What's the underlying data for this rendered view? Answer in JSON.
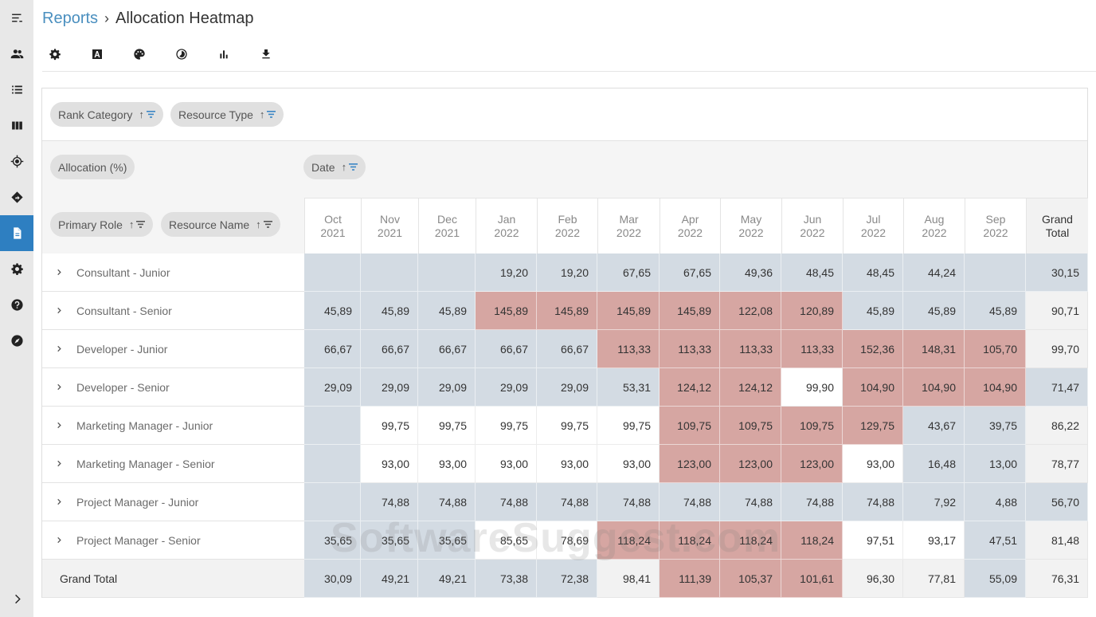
{
  "sidebar": {
    "items": [
      {
        "name": "menu-toggle",
        "icon": "menu-icon",
        "active": false
      },
      {
        "name": "people",
        "icon": "people-icon",
        "active": false
      },
      {
        "name": "list",
        "icon": "list-icon",
        "active": false
      },
      {
        "name": "board",
        "icon": "columns-icon",
        "active": false
      },
      {
        "name": "target",
        "icon": "crosshair-icon",
        "active": false
      },
      {
        "name": "directions",
        "icon": "directions-icon",
        "active": false
      },
      {
        "name": "reports",
        "icon": "document-icon",
        "active": true
      },
      {
        "name": "settings",
        "icon": "gear-icon",
        "active": false
      },
      {
        "name": "help",
        "icon": "help-icon",
        "active": false
      },
      {
        "name": "explore",
        "icon": "compass-icon",
        "active": false
      }
    ],
    "expand_icon": "chevron-right-icon"
  },
  "header": {
    "breadcrumb_parent": "Reports",
    "breadcrumb_separator": "›",
    "title": "Allocation Heatmap"
  },
  "toolbar": {
    "buttons": [
      "settings-icon",
      "font-icon",
      "palette-icon",
      "contrast-icon",
      "bar-chart-icon",
      "download-icon"
    ]
  },
  "pivot": {
    "filter_fields": [
      {
        "label": "Rank Category",
        "sort": "↑"
      },
      {
        "label": "Resource Type",
        "sort": "↑"
      }
    ],
    "value_field": {
      "label": "Allocation (%)"
    },
    "column_fields": [
      {
        "label": "Date",
        "sort": "↑"
      }
    ],
    "row_fields": [
      {
        "label": "Primary Role",
        "sort": "↑"
      },
      {
        "label": "Resource Name",
        "sort": "↑"
      }
    ],
    "columns": [
      {
        "month": "Oct",
        "year": "2021"
      },
      {
        "month": "Nov",
        "year": "2021"
      },
      {
        "month": "Dec",
        "year": "2021"
      },
      {
        "month": "Jan",
        "year": "2022"
      },
      {
        "month": "Feb",
        "year": "2022"
      },
      {
        "month": "Mar",
        "year": "2022"
      },
      {
        "month": "Apr",
        "year": "2022"
      },
      {
        "month": "May",
        "year": "2022"
      },
      {
        "month": "Jun",
        "year": "2022"
      },
      {
        "month": "Jul",
        "year": "2022"
      },
      {
        "month": "Aug",
        "year": "2022"
      },
      {
        "month": "Sep",
        "year": "2022"
      }
    ],
    "grand_total_header": {
      "line1": "Grand",
      "line2": "Total"
    },
    "rows": [
      {
        "label": "Consultant - Junior",
        "values": [
          "",
          "",
          "",
          "19,20",
          "19,20",
          "67,65",
          "67,65",
          "49,36",
          "48,45",
          "48,45",
          "44,24",
          ""
        ],
        "total": "30,15"
      },
      {
        "label": "Consultant - Senior",
        "values": [
          "45,89",
          "45,89",
          "45,89",
          "145,89",
          "145,89",
          "145,89",
          "145,89",
          "122,08",
          "120,89",
          "45,89",
          "45,89",
          "45,89"
        ],
        "total": "90,71"
      },
      {
        "label": "Developer - Junior",
        "values": [
          "66,67",
          "66,67",
          "66,67",
          "66,67",
          "66,67",
          "113,33",
          "113,33",
          "113,33",
          "113,33",
          "152,36",
          "148,31",
          "105,70"
        ],
        "total": "99,70"
      },
      {
        "label": "Developer - Senior",
        "values": [
          "29,09",
          "29,09",
          "29,09",
          "29,09",
          "29,09",
          "53,31",
          "124,12",
          "124,12",
          "99,90",
          "104,90",
          "104,90",
          "104,90"
        ],
        "total": "71,47"
      },
      {
        "label": "Marketing Manager - Junior",
        "values": [
          "",
          "99,75",
          "99,75",
          "99,75",
          "99,75",
          "99,75",
          "109,75",
          "109,75",
          "109,75",
          "129,75",
          "43,67",
          "39,75"
        ],
        "total": "86,22"
      },
      {
        "label": "Marketing Manager - Senior",
        "values": [
          "",
          "93,00",
          "93,00",
          "93,00",
          "93,00",
          "93,00",
          "123,00",
          "123,00",
          "123,00",
          "93,00",
          "16,48",
          "13,00"
        ],
        "total": "78,77"
      },
      {
        "label": "Project Manager - Junior",
        "values": [
          "",
          "74,88",
          "74,88",
          "74,88",
          "74,88",
          "74,88",
          "74,88",
          "74,88",
          "74,88",
          "74,88",
          "7,92",
          "4,88"
        ],
        "total": "56,70"
      },
      {
        "label": "Project Manager - Senior",
        "values": [
          "35,65",
          "35,65",
          "35,65",
          "85,65",
          "78,69",
          "118,24",
          "118,24",
          "118,24",
          "118,24",
          "97,51",
          "93,17",
          "47,51"
        ],
        "total": "81,48"
      }
    ],
    "grand_total_row": {
      "label": "Grand Total",
      "values": [
        "30,09",
        "49,21",
        "49,21",
        "73,38",
        "72,38",
        "98,41",
        "111,39",
        "105,37",
        "101,61",
        "96,30",
        "77,81",
        "55,09"
      ],
      "total": "76,31"
    },
    "colors": {
      "low": "#d3dbe3",
      "mid": "#ffffff",
      "high": "#d6a6a2",
      "total_mid": "#f2f2f2"
    }
  },
  "watermark": "SoftwareSuggest.com"
}
